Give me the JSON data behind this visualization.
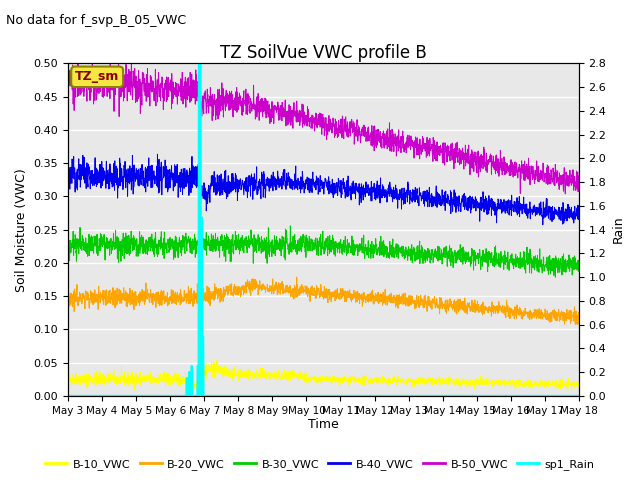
{
  "title": "TZ SoilVue VWC profile B",
  "subtitle": "No data for f_svp_B_05_VWC",
  "xlabel": "Time",
  "ylabel_left": "Soil Moisture (VWC)",
  "ylabel_right": "Rain",
  "annotation": "TZ_sm",
  "x_ticks": [
    0,
    1,
    2,
    3,
    4,
    5,
    6,
    7,
    8,
    9,
    10,
    11,
    12,
    13,
    14,
    15
  ],
  "x_tick_labels": [
    "May 3",
    "May 4",
    "May 5",
    "May 6",
    "May 7",
    "May 8",
    "May 9",
    "May 10",
    "May 11",
    "May 12",
    "May 13",
    "May 14",
    "May 15",
    "May 16",
    "May 17",
    "May 18"
  ],
  "ylim_left": [
    0.0,
    0.5
  ],
  "ylim_right": [
    0.0,
    2.8
  ],
  "yticks_left": [
    0.0,
    0.05,
    0.1,
    0.15,
    0.2,
    0.25,
    0.3,
    0.35,
    0.4,
    0.45,
    0.5
  ],
  "yticks_right": [
    0.0,
    0.2,
    0.4,
    0.6,
    0.8,
    1.0,
    1.2,
    1.4,
    1.6,
    1.8,
    2.0,
    2.2,
    2.4,
    2.6,
    2.8
  ],
  "colors": {
    "B10": "#ffff00",
    "B20": "#ffa500",
    "B30": "#00cc00",
    "B40": "#0000ee",
    "B50": "#cc00cc",
    "rain": "#00ffff",
    "background": "#e8e8e8"
  },
  "legend_labels": [
    "B-10_VWC",
    "B-20_VWC",
    "B-30_VWC",
    "B-40_VWC",
    "B-50_VWC",
    "sp1_Rain"
  ],
  "figsize": [
    6.4,
    4.8
  ],
  "dpi": 100
}
